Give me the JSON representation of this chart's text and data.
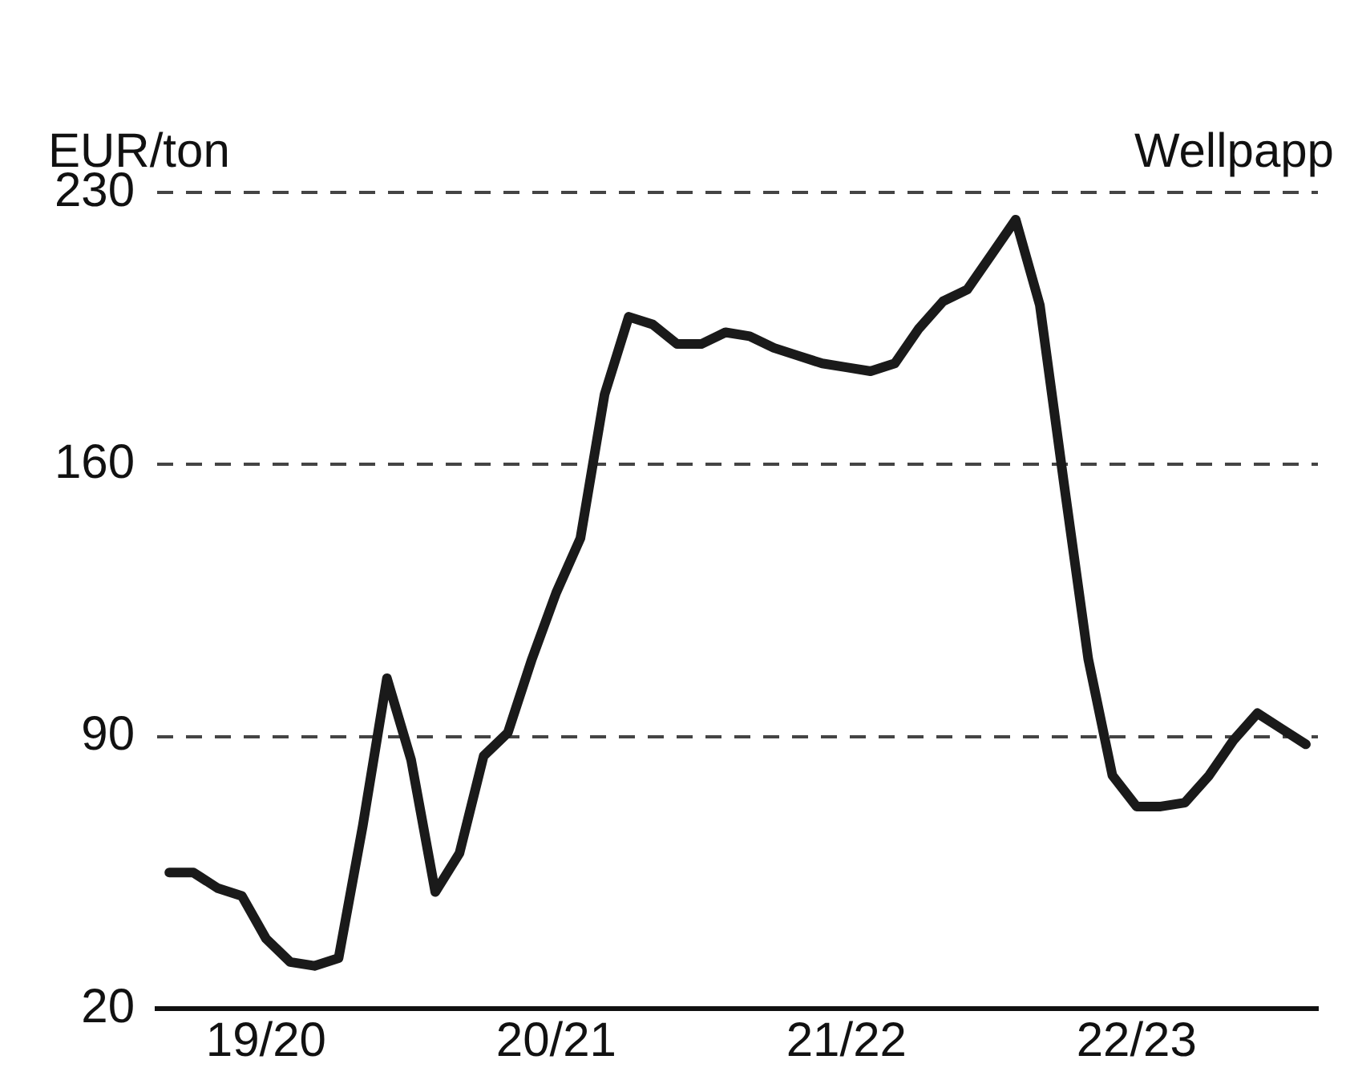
{
  "chart_data": {
    "type": "line",
    "title": "Wellpapp",
    "ylabel": "EUR/ton",
    "categories": [
      null,
      null,
      null,
      null,
      "19/20",
      null,
      null,
      null,
      null,
      null,
      null,
      null,
      null,
      null,
      null,
      null,
      "20/21",
      null,
      null,
      null,
      null,
      null,
      null,
      null,
      null,
      null,
      null,
      null,
      "21/22",
      null,
      null,
      null,
      null,
      null,
      null,
      null,
      null,
      null,
      null,
      null,
      "22/23",
      null,
      null,
      null,
      null,
      null,
      null,
      null
    ],
    "series": [
      {
        "color": "#1a1a1a",
        "values": [
          55,
          55,
          51,
          49,
          38,
          32,
          31,
          33,
          67,
          105,
          84,
          50,
          60,
          85,
          91,
          110,
          127,
          141,
          178,
          198,
          196,
          191,
          191,
          194,
          193,
          190,
          188,
          186,
          185,
          184,
          186,
          195,
          202,
          205,
          214,
          223,
          201,
          155,
          110,
          80,
          72,
          72,
          73,
          80,
          89,
          96,
          92,
          88
        ]
      }
    ],
    "ylim": [
      20,
      230
    ],
    "yticks": [
      20,
      90,
      160,
      230
    ],
    "grid": "y",
    "legend": false,
    "marker": "none",
    "line_style": "solid"
  }
}
